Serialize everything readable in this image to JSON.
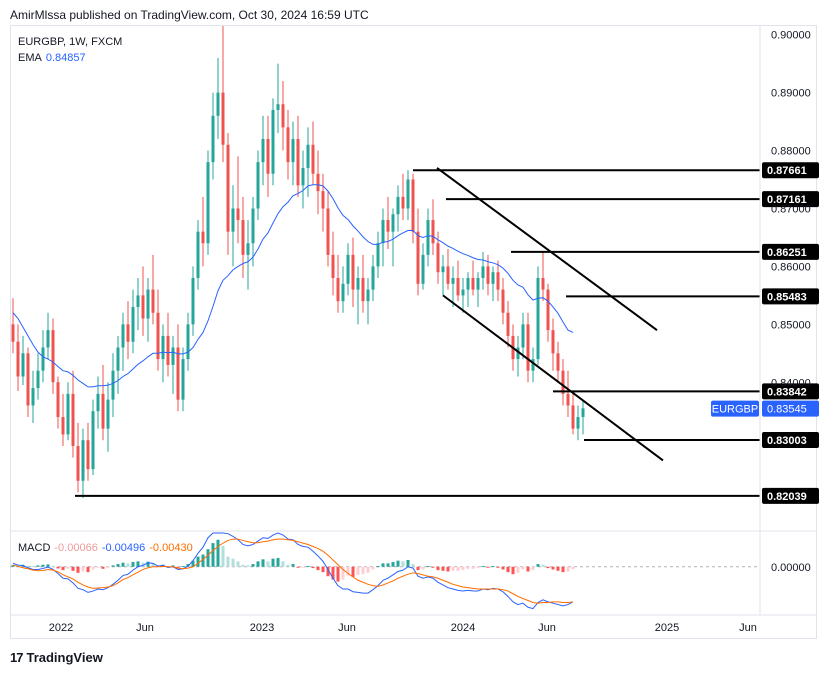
{
  "header": {
    "published_by": "AmirMlssa published on TradingView.com, Oct 30, 2024 16:59 UTC"
  },
  "legend": {
    "symbol_line": "EURGBP, 1W, FXCM",
    "ema_label": "EMA",
    "ema_value": "0.84857",
    "macd_label": "MACD",
    "macd_hist": "-0.00066",
    "macd_line": "-0.00496",
    "macd_signal": "-0.00430"
  },
  "footer": {
    "brand": "TradingView",
    "logo_text": "17"
  },
  "chart_data": {
    "type": "candlestick",
    "symbol": "EURGBP",
    "interval": "1W",
    "source": "FXCM",
    "ylim": [
      0.8145,
      0.9015
    ],
    "price_ticks": [
      "0.90000",
      "0.89000",
      "0.88000",
      "0.87000",
      "0.86000",
      "0.85000",
      "0.84000",
      "0.00000"
    ],
    "time_labels": [
      "2022",
      "Jun",
      "2023",
      "Jun",
      "2024",
      "Jun",
      "2025",
      "Jun"
    ],
    "horizontal_levels": [
      {
        "value": "0.87661"
      },
      {
        "value": "0.87161"
      },
      {
        "value": "0.86251"
      },
      {
        "value": "0.85483"
      },
      {
        "value": "0.83842"
      },
      {
        "value": "0.83003"
      },
      {
        "value": "0.82039"
      }
    ],
    "last_price": {
      "label": "EURGBP",
      "value": "0.83545"
    },
    "channel": {
      "upper": [
        [
          "2023-11",
          0.877
        ],
        [
          "2025-01",
          0.849
        ]
      ],
      "lower": [
        [
          "2023-12",
          0.855
        ],
        [
          "2025-02",
          0.8265
        ]
      ]
    },
    "ohlc": [
      [
        0.85,
        0.8545,
        0.845,
        0.847
      ],
      [
        0.847,
        0.85,
        0.8385,
        0.841
      ],
      [
        0.841,
        0.848,
        0.8395,
        0.845
      ],
      [
        0.845,
        0.846,
        0.834,
        0.836
      ],
      [
        0.836,
        0.842,
        0.833,
        0.839
      ],
      [
        0.839,
        0.845,
        0.837,
        0.842
      ],
      [
        0.842,
        0.849,
        0.84,
        0.846
      ],
      [
        0.846,
        0.852,
        0.844,
        0.849
      ],
      [
        0.849,
        0.851,
        0.838,
        0.84
      ],
      [
        0.84,
        0.841,
        0.832,
        0.834
      ],
      [
        0.834,
        0.838,
        0.829,
        0.831
      ],
      [
        0.831,
        0.84,
        0.83,
        0.838
      ],
      [
        0.838,
        0.842,
        0.827,
        0.829
      ],
      [
        0.829,
        0.833,
        0.821,
        0.823
      ],
      [
        0.823,
        0.832,
        0.82,
        0.83
      ],
      [
        0.83,
        0.833,
        0.823,
        0.825
      ],
      [
        0.825,
        0.837,
        0.824,
        0.835
      ],
      [
        0.835,
        0.841,
        0.832,
        0.838
      ],
      [
        0.838,
        0.843,
        0.83,
        0.832
      ],
      [
        0.832,
        0.84,
        0.828,
        0.837
      ],
      [
        0.837,
        0.845,
        0.834,
        0.842
      ],
      [
        0.842,
        0.848,
        0.838,
        0.846
      ],
      [
        0.846,
        0.852,
        0.842,
        0.85
      ],
      [
        0.85,
        0.854,
        0.844,
        0.847
      ],
      [
        0.847,
        0.856,
        0.845,
        0.853
      ],
      [
        0.853,
        0.858,
        0.849,
        0.855
      ],
      [
        0.855,
        0.86,
        0.848,
        0.851
      ],
      [
        0.851,
        0.858,
        0.847,
        0.856
      ],
      [
        0.856,
        0.862,
        0.85,
        0.852
      ],
      [
        0.852,
        0.856,
        0.842,
        0.844
      ],
      [
        0.844,
        0.85,
        0.84,
        0.848
      ],
      [
        0.848,
        0.852,
        0.841,
        0.843
      ],
      [
        0.843,
        0.848,
        0.838,
        0.846
      ],
      [
        0.846,
        0.85,
        0.835,
        0.837
      ],
      [
        0.837,
        0.846,
        0.835,
        0.844
      ],
      [
        0.844,
        0.852,
        0.842,
        0.85
      ],
      [
        0.85,
        0.86,
        0.848,
        0.858
      ],
      [
        0.858,
        0.868,
        0.856,
        0.866
      ],
      [
        0.866,
        0.872,
        0.86,
        0.864
      ],
      [
        0.864,
        0.88,
        0.862,
        0.878
      ],
      [
        0.878,
        0.89,
        0.875,
        0.886
      ],
      [
        0.886,
        0.896,
        0.882,
        0.89
      ],
      [
        0.89,
        0.9015,
        0.878,
        0.881
      ],
      [
        0.881,
        0.883,
        0.862,
        0.866
      ],
      [
        0.866,
        0.874,
        0.86,
        0.87
      ],
      [
        0.87,
        0.879,
        0.864,
        0.868
      ],
      [
        0.868,
        0.872,
        0.858,
        0.862
      ],
      [
        0.862,
        0.868,
        0.856,
        0.864
      ],
      [
        0.864,
        0.872,
        0.86,
        0.87
      ],
      [
        0.87,
        0.88,
        0.868,
        0.878
      ],
      [
        0.878,
        0.886,
        0.874,
        0.882
      ],
      [
        0.882,
        0.886,
        0.872,
        0.876
      ],
      [
        0.876,
        0.889,
        0.874,
        0.887
      ],
      [
        0.887,
        0.895,
        0.883,
        0.888
      ],
      [
        0.888,
        0.892,
        0.88,
        0.884
      ],
      [
        0.884,
        0.887,
        0.875,
        0.878
      ],
      [
        0.878,
        0.885,
        0.874,
        0.882
      ],
      [
        0.882,
        0.886,
        0.872,
        0.874
      ],
      [
        0.874,
        0.88,
        0.87,
        0.877
      ],
      [
        0.877,
        0.884,
        0.872,
        0.881
      ],
      [
        0.881,
        0.885,
        0.874,
        0.876
      ],
      [
        0.876,
        0.88,
        0.869,
        0.873
      ],
      [
        0.873,
        0.876,
        0.866,
        0.87
      ],
      [
        0.87,
        0.873,
        0.86,
        0.862
      ],
      [
        0.862,
        0.866,
        0.855,
        0.858
      ],
      [
        0.858,
        0.862,
        0.852,
        0.854
      ],
      [
        0.854,
        0.86,
        0.852,
        0.857
      ],
      [
        0.857,
        0.864,
        0.855,
        0.862
      ],
      [
        0.862,
        0.865,
        0.853,
        0.856
      ],
      [
        0.856,
        0.86,
        0.85,
        0.858
      ],
      [
        0.858,
        0.862,
        0.852,
        0.854
      ],
      [
        0.854,
        0.858,
        0.85,
        0.856
      ],
      [
        0.856,
        0.862,
        0.854,
        0.86
      ],
      [
        0.86,
        0.866,
        0.858,
        0.864
      ],
      [
        0.864,
        0.87,
        0.86,
        0.868
      ],
      [
        0.868,
        0.872,
        0.863,
        0.866
      ],
      [
        0.866,
        0.87,
        0.86,
        0.869
      ],
      [
        0.869,
        0.874,
        0.866,
        0.872
      ],
      [
        0.872,
        0.876,
        0.868,
        0.87
      ],
      [
        0.87,
        0.8766,
        0.868,
        0.875
      ],
      [
        0.875,
        0.876,
        0.864,
        0.866
      ],
      [
        0.866,
        0.87,
        0.855,
        0.857
      ],
      [
        0.857,
        0.864,
        0.856,
        0.862
      ],
      [
        0.862,
        0.87,
        0.86,
        0.868
      ],
      [
        0.868,
        0.8716,
        0.862,
        0.864
      ],
      [
        0.864,
        0.866,
        0.857,
        0.859
      ],
      [
        0.859,
        0.862,
        0.855,
        0.86
      ],
      [
        0.86,
        0.863,
        0.856,
        0.857
      ],
      [
        0.857,
        0.86,
        0.853,
        0.858
      ],
      [
        0.858,
        0.861,
        0.854,
        0.855
      ],
      [
        0.855,
        0.858,
        0.852,
        0.856
      ],
      [
        0.856,
        0.859,
        0.853,
        0.858
      ],
      [
        0.858,
        0.861,
        0.855,
        0.856
      ],
      [
        0.856,
        0.859,
        0.853,
        0.858
      ],
      [
        0.858,
        0.8625,
        0.856,
        0.86
      ],
      [
        0.86,
        0.862,
        0.855,
        0.857
      ],
      [
        0.857,
        0.86,
        0.854,
        0.859
      ],
      [
        0.859,
        0.861,
        0.854,
        0.856
      ],
      [
        0.856,
        0.858,
        0.85,
        0.852
      ],
      [
        0.852,
        0.854,
        0.846,
        0.848
      ],
      [
        0.848,
        0.85,
        0.842,
        0.844
      ],
      [
        0.844,
        0.848,
        0.841,
        0.846
      ],
      [
        0.846,
        0.852,
        0.844,
        0.85
      ],
      [
        0.85,
        0.852,
        0.84,
        0.842
      ],
      [
        0.842,
        0.846,
        0.84,
        0.844
      ],
      [
        0.844,
        0.86,
        0.843,
        0.858
      ],
      [
        0.858,
        0.8625,
        0.854,
        0.856
      ],
      [
        0.856,
        0.857,
        0.847,
        0.849
      ],
      [
        0.849,
        0.851,
        0.842,
        0.845
      ],
      [
        0.845,
        0.847,
        0.84,
        0.842
      ],
      [
        0.842,
        0.844,
        0.836,
        0.838
      ],
      [
        0.838,
        0.842,
        0.834,
        0.836
      ],
      [
        0.836,
        0.8384,
        0.831,
        0.832
      ],
      [
        0.832,
        0.836,
        0.83,
        0.834
      ],
      [
        0.834,
        0.837,
        0.831,
        0.8355
      ]
    ],
    "ema": [
      0.852,
      0.851,
      0.8495,
      0.848,
      0.8465,
      0.8452,
      0.8444,
      0.844,
      0.8435,
      0.8427,
      0.842,
      0.8418,
      0.8412,
      0.8404,
      0.8398,
      0.8392,
      0.8392,
      0.8394,
      0.8394,
      0.8395,
      0.8398,
      0.8403,
      0.841,
      0.8415,
      0.8423,
      0.8431,
      0.8437,
      0.8444,
      0.845,
      0.845,
      0.8452,
      0.8451,
      0.8452,
      0.8449,
      0.8449,
      0.8452,
      0.846,
      0.8474,
      0.8486,
      0.8506,
      0.8531,
      0.8558,
      0.8576,
      0.8584,
      0.8594,
      0.86,
      0.8605,
      0.8608,
      0.8616,
      0.863,
      0.8647,
      0.8658,
      0.8675,
      0.8691,
      0.8703,
      0.8711,
      0.8722,
      0.8726,
      0.8731,
      0.8739,
      0.8741,
      0.8741,
      0.8739,
      0.873,
      0.8717,
      0.8701,
      0.8688,
      0.8681,
      0.867,
      0.8661,
      0.8651,
      0.8643,
      0.8638,
      0.8638,
      0.8642,
      0.8643,
      0.8647,
      0.8653,
      0.8658,
      0.8662,
      0.8662,
      0.8653,
      0.865,
      0.8653,
      0.8652,
      0.8646,
      0.8641,
      0.8635,
      0.8631,
      0.8626,
      0.8622,
      0.8619,
      0.8615,
      0.8612,
      0.8611,
      0.8608,
      0.8606,
      0.8603,
      0.8597,
      0.8588,
      0.8576,
      0.8568,
      0.8564,
      0.8551,
      0.8542,
      0.8545,
      0.8546,
      0.854,
      0.853,
      0.8519,
      0.8504,
      0.849,
      0.8486
    ],
    "macd": {
      "ylim": [
        -0.014,
        0.01
      ],
      "zero_label": "0.00000",
      "hist": [
        0.0005,
        0.0004,
        0.0006,
        0.0003,
        0.0002,
        0.0004,
        0.0006,
        0.0007,
        0.0002,
        -0.0005,
        -0.001,
        -0.0006,
        -0.0012,
        -0.0018,
        -0.0014,
        -0.0016,
        -0.0008,
        -0.0003,
        -0.0006,
        -0.0002,
        0.0004,
        0.0008,
        0.0012,
        0.001,
        0.0014,
        0.0016,
        0.0012,
        0.0015,
        0.001,
        0.0004,
        0.0006,
        0.0002,
        0.0004,
        -0.0002,
        0.0002,
        0.0008,
        0.0018,
        0.003,
        0.0036,
        0.0052,
        0.007,
        0.008,
        0.0062,
        0.003,
        0.0024,
        0.0016,
        0.0006,
        0.0004,
        0.0008,
        0.0016,
        0.0022,
        0.0016,
        0.0024,
        0.0026,
        0.0016,
        0.0006,
        0.0008,
        -0.0002,
        -0.0002,
        0.0002,
        -0.0004,
        -0.001,
        -0.0016,
        -0.0028,
        -0.0038,
        -0.0044,
        -0.0038,
        -0.0026,
        -0.003,
        -0.0024,
        -0.0022,
        -0.0018,
        -0.0008,
        0.0002,
        0.001,
        0.001,
        0.0014,
        0.0018,
        0.0016,
        0.002,
        0.0008,
        -0.001,
        -0.0008,
        0.0002,
        -0.0002,
        -0.001,
        -0.0012,
        -0.0014,
        -0.0012,
        -0.0012,
        -0.001,
        -0.0006,
        -0.0006,
        -0.0004,
        0.0002,
        -0.0002,
        0.0002,
        -0.0002,
        -0.0008,
        -0.0016,
        -0.0022,
        -0.0018,
        -0.0008,
        -0.0014,
        -0.001,
        0.0008,
        0.0006,
        -0.0004,
        -0.0008,
        -0.0012,
        -0.0016,
        -0.0014,
        -0.0007
      ],
      "line": [
        0.001,
        0.0005,
        0.0003,
        -0.0003,
        -0.0008,
        -0.0008,
        -0.0005,
        -0.0001,
        -0.0008,
        -0.002,
        -0.0034,
        -0.0036,
        -0.0048,
        -0.0064,
        -0.0068,
        -0.0076,
        -0.0072,
        -0.0066,
        -0.0068,
        -0.0062,
        -0.0052,
        -0.004,
        -0.0026,
        -0.0022,
        -0.001,
        0.0,
        0.0004,
        0.0012,
        0.001,
        0.0002,
        0.0004,
        -0.0002,
        0.0,
        -0.0008,
        -0.0006,
        0.0002,
        0.0018,
        0.004,
        0.0058,
        0.0086,
        0.0118,
        0.014,
        0.0132,
        0.0098,
        0.009,
        0.008,
        0.0066,
        0.0062,
        0.0066,
        0.0076,
        0.0086,
        0.0084,
        0.0094,
        0.01,
        0.0094,
        0.0082,
        0.008,
        0.0066,
        0.006,
        0.0058,
        0.0046,
        0.0032,
        0.0016,
        -0.0008,
        -0.0034,
        -0.0056,
        -0.0066,
        -0.0066,
        -0.0074,
        -0.0076,
        -0.0078,
        -0.0078,
        -0.0068,
        -0.0056,
        -0.004,
        -0.0034,
        -0.0024,
        -0.0014,
        -0.001,
        0.0,
        -0.0004,
        -0.0028,
        -0.0034,
        -0.003,
        -0.0034,
        -0.0046,
        -0.0054,
        -0.0062,
        -0.0066,
        -0.007,
        -0.0072,
        -0.007,
        -0.0072,
        -0.0072,
        -0.0066,
        -0.0068,
        -0.0064,
        -0.0066,
        -0.0074,
        -0.0088,
        -0.0104,
        -0.0112,
        -0.0108,
        -0.012,
        -0.0124,
        -0.0106,
        -0.0098,
        -0.0104,
        -0.0108,
        -0.0112,
        -0.0116,
        -0.0112,
        -0.0104
      ],
      "signal": [
        0.0005,
        0.0001,
        -0.0003,
        -0.0006,
        -0.001,
        -0.0012,
        -0.0011,
        -0.0008,
        -0.001,
        -0.0015,
        -0.0024,
        -0.003,
        -0.0036,
        -0.0046,
        -0.0054,
        -0.006,
        -0.0064,
        -0.0063,
        -0.0062,
        -0.006,
        -0.0056,
        -0.0048,
        -0.0038,
        -0.0032,
        -0.0024,
        -0.0016,
        -0.0008,
        -0.0003,
        0.0,
        0.0,
        0.0001,
        0.0,
        0.0,
        -0.0004,
        -0.0006,
        -0.0004,
        0.0,
        0.001,
        0.0022,
        0.0034,
        0.0048,
        0.006,
        0.007,
        0.0078,
        0.0082,
        0.0082,
        0.0078,
        0.0074,
        0.0071,
        0.0071,
        0.0074,
        0.0076,
        0.008,
        0.0082,
        0.0082,
        0.008,
        0.0078,
        0.0074,
        0.007,
        0.0066,
        0.006,
        0.0054,
        0.0046,
        0.0034,
        0.002,
        0.0006,
        -0.0008,
        -0.002,
        -0.003,
        -0.004,
        -0.0046,
        -0.0052,
        -0.0056,
        -0.0058,
        -0.0054,
        -0.0048,
        -0.0042,
        -0.0034,
        -0.0028,
        -0.0022,
        -0.0018,
        -0.002,
        -0.0024,
        -0.0028,
        -0.003,
        -0.0034,
        -0.004,
        -0.0046,
        -0.0052,
        -0.0056,
        -0.006,
        -0.0062,
        -0.0064,
        -0.0066,
        -0.0066,
        -0.0066,
        -0.0066,
        -0.0066,
        -0.0068,
        -0.0072,
        -0.008,
        -0.0088,
        -0.0094,
        -0.01,
        -0.0106,
        -0.0108,
        -0.0106,
        -0.0106,
        -0.0104,
        -0.0104,
        -0.0106,
        -0.0106,
        -0.0104
      ]
    },
    "colors": {
      "up": "#26a69a",
      "down": "#ef5350",
      "ema": "#2962ff",
      "macd": "#2962ff",
      "signal": "#ff6d00",
      "hist_pos_strong": "#26a69a",
      "hist_pos_weak": "#b2dfdb",
      "hist_neg_strong": "#ff5252",
      "hist_neg_weak": "#ffcdd2",
      "label_bg": "#000000",
      "symbol_label_bg": "#2962ff"
    }
  }
}
